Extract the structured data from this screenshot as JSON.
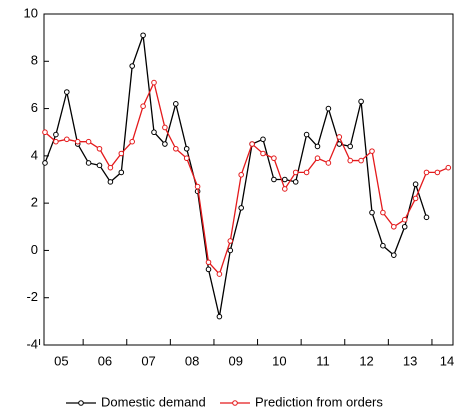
{
  "chart_data": {
    "type": "line",
    "categories": [
      "05",
      null,
      null,
      null,
      "06",
      null,
      null,
      null,
      "07",
      null,
      null,
      null,
      "08",
      null,
      null,
      null,
      "09",
      null,
      null,
      null,
      "10",
      null,
      null,
      null,
      "11",
      null,
      null,
      null,
      "12",
      null,
      null,
      null,
      "13",
      null,
      null,
      null,
      "14",
      null
    ],
    "series": [
      {
        "name": "Domestic demand",
        "color": "#000000",
        "values": [
          3.7,
          4.9,
          6.7,
          4.5,
          3.7,
          3.6,
          2.9,
          3.3,
          7.8,
          9.1,
          5.0,
          4.5,
          6.2,
          4.3,
          2.5,
          -0.8,
          -2.8,
          0.0,
          1.8,
          4.5,
          4.7,
          3.0,
          3.0,
          2.9,
          4.9,
          4.4,
          6.0,
          4.5,
          4.4,
          6.3,
          1.6,
          0.2,
          -0.2,
          1.0,
          2.8,
          1.4,
          null,
          null
        ]
      },
      {
        "name": "Prediction from orders",
        "color": "#e41a1c",
        "values": [
          5.0,
          4.6,
          4.7,
          4.6,
          4.6,
          4.3,
          3.5,
          4.1,
          4.6,
          6.1,
          7.1,
          5.2,
          4.3,
          3.9,
          2.7,
          -0.5,
          -1.0,
          0.4,
          3.2,
          4.5,
          4.1,
          3.9,
          2.6,
          3.3,
          3.3,
          3.9,
          3.7,
          4.8,
          3.8,
          3.8,
          4.2,
          1.6,
          1.0,
          1.3,
          2.2,
          3.3,
          3.3,
          3.5
        ]
      }
    ],
    "ylim": [
      -4,
      10
    ],
    "yticks": [
      -4,
      -2,
      0,
      2,
      4,
      6,
      8,
      10
    ],
    "legend": "bottom"
  }
}
